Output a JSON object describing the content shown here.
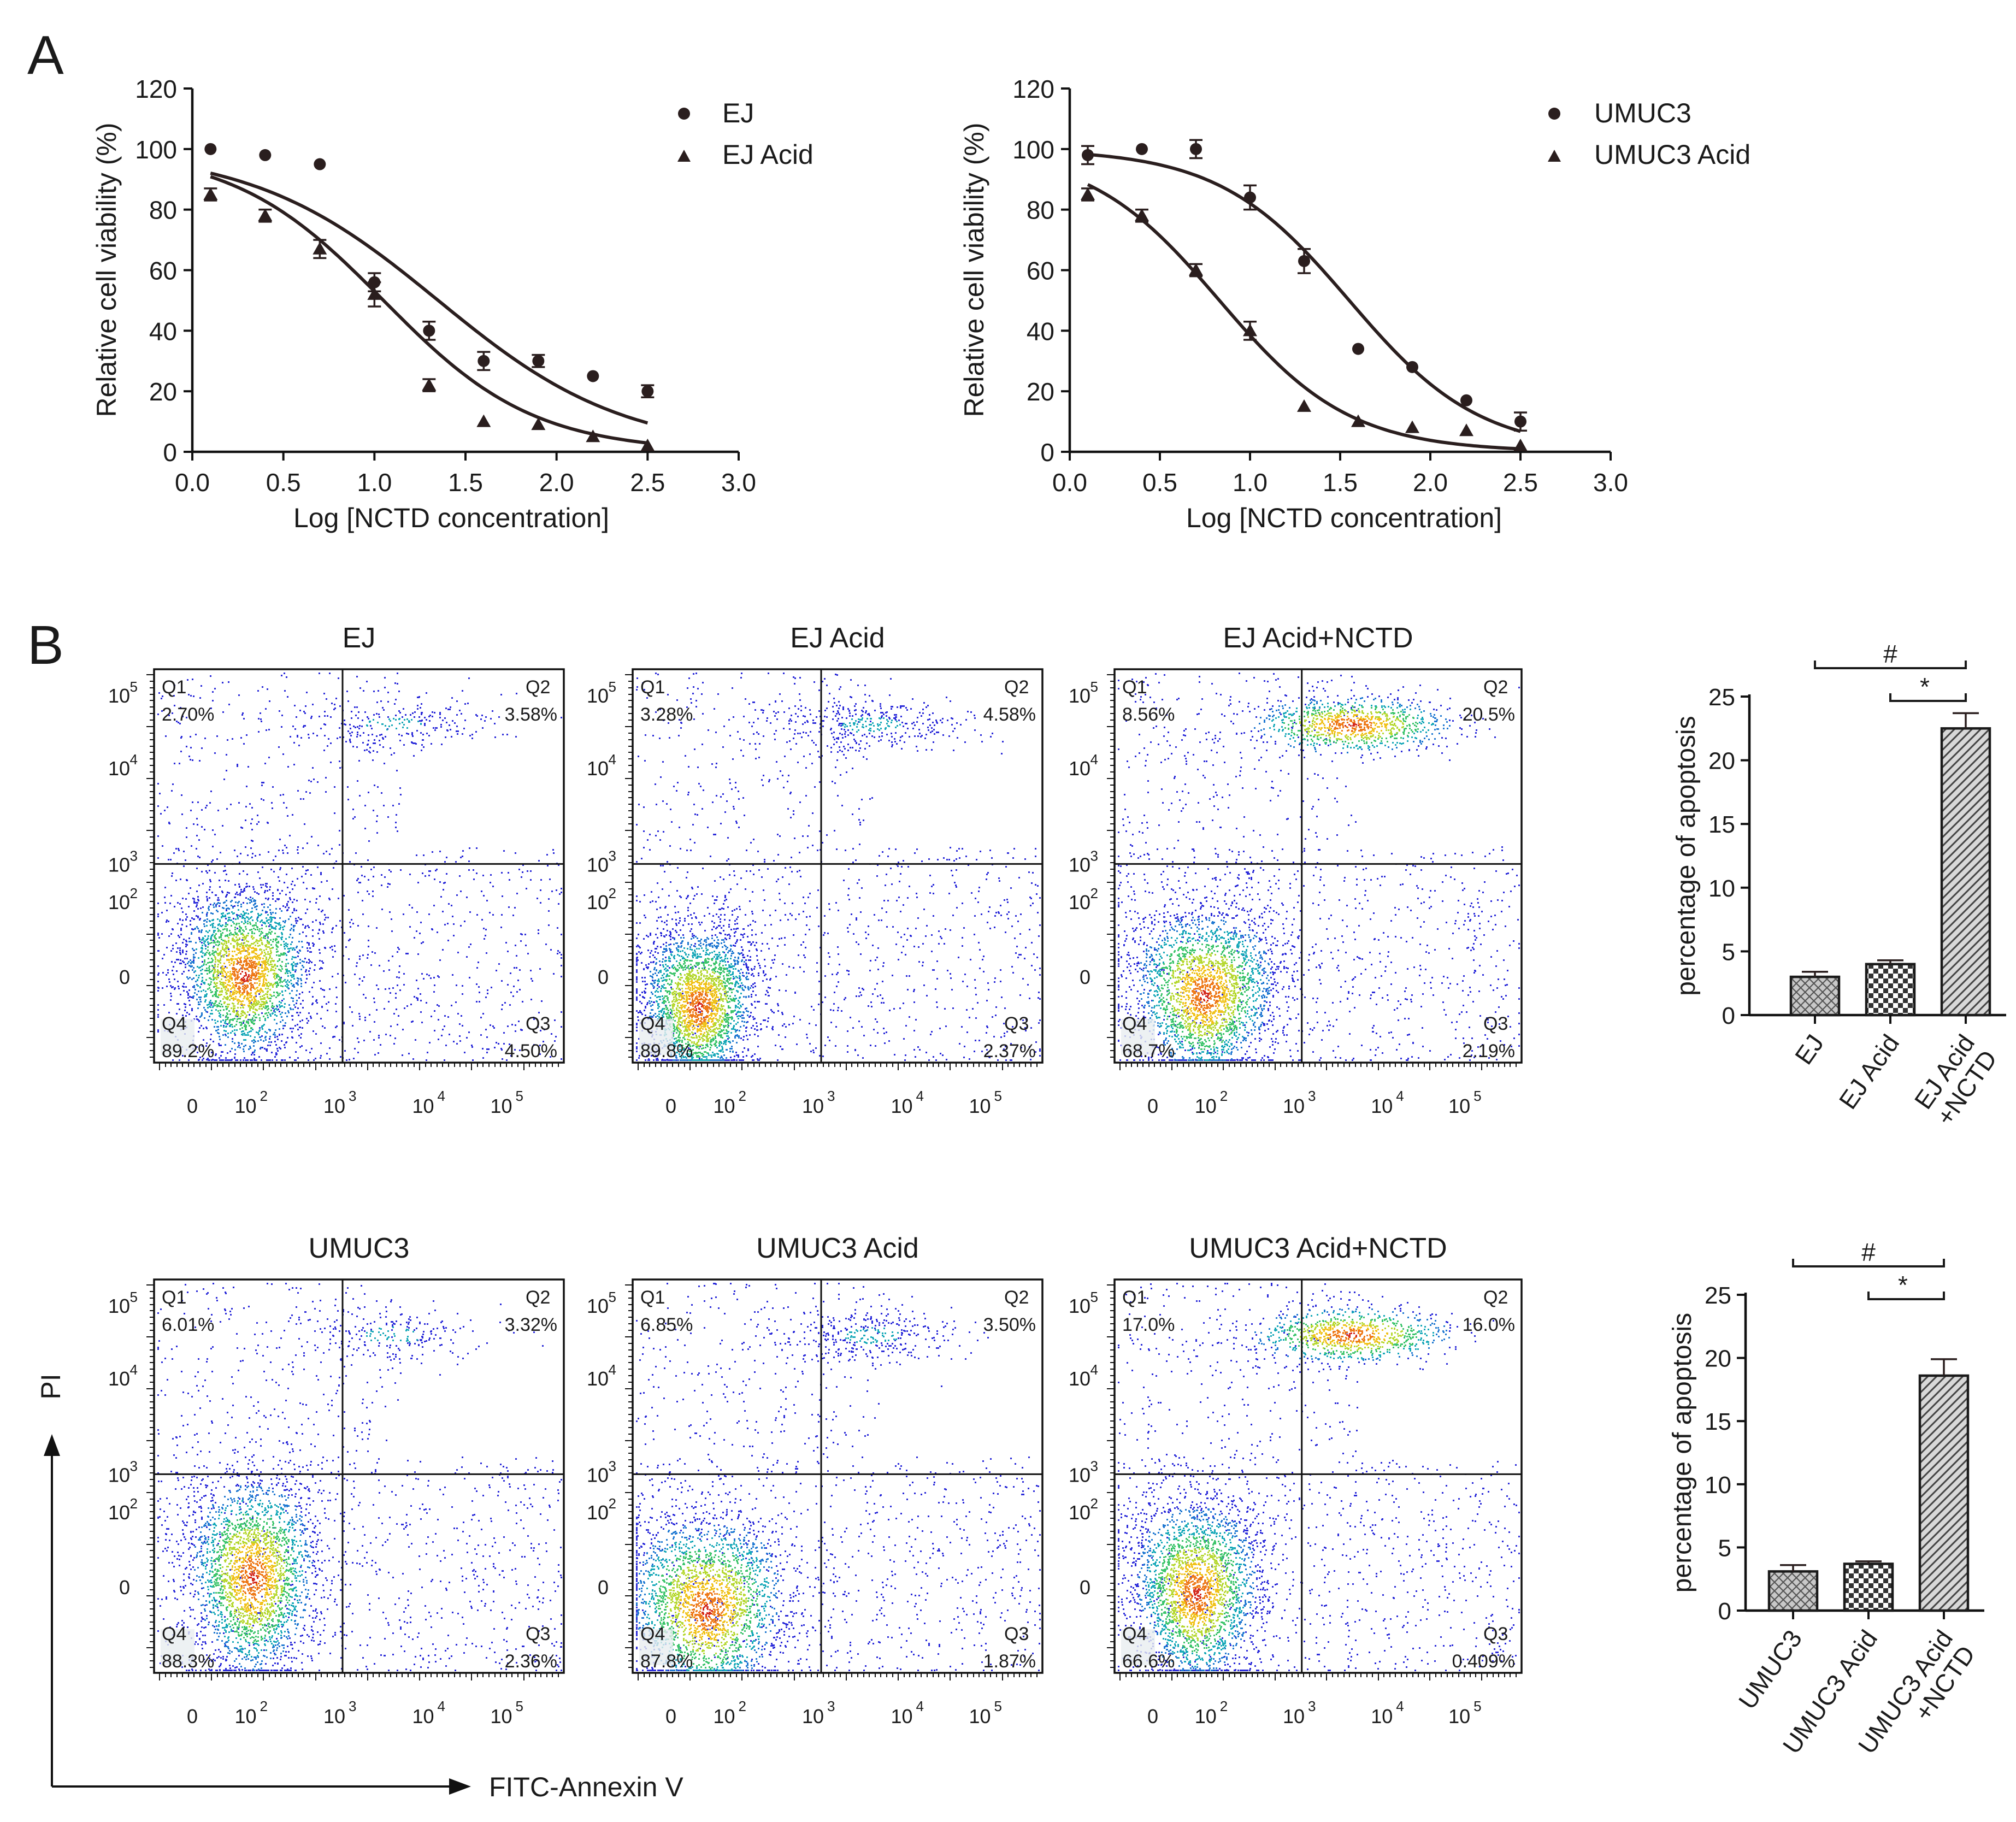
{
  "panel_labels": {
    "a": "A",
    "b": "B"
  },
  "chart_data": [
    {
      "id": "viability_ej",
      "type": "scatter",
      "xlabel": "Log [NCTD concentration]",
      "ylabel": "Relative cell viability (%)",
      "xlim": [
        0,
        3
      ],
      "ylim": [
        0,
        120
      ],
      "xticks": [
        "0.0",
        "0.5",
        "1.0",
        "1.5",
        "2.0",
        "2.5",
        "3.0"
      ],
      "yticks": [
        "0",
        "20",
        "40",
        "60",
        "80",
        "100",
        "120"
      ],
      "legend_position": "top-right",
      "series": [
        {
          "name": "EJ",
          "marker": "circle",
          "x": [
            0.1,
            0.4,
            0.7,
            1.0,
            1.3,
            1.6,
            1.9,
            2.2,
            2.5
          ],
          "y": [
            100,
            98,
            95,
            56,
            40,
            30,
            30,
            25,
            20
          ],
          "err": [
            0,
            0,
            0,
            3,
            3,
            3,
            2,
            0,
            2
          ],
          "fit": {
            "top": 100,
            "bottom": 0,
            "log_ic50": 1.35,
            "hill": 0.85
          }
        },
        {
          "name": "EJ Acid",
          "marker": "triangle",
          "x": [
            0.1,
            0.4,
            0.7,
            1.0,
            1.3,
            1.6,
            1.9,
            2.2,
            2.5
          ],
          "y": [
            85,
            78,
            67,
            52,
            22,
            10,
            9,
            5,
            2
          ],
          "err": [
            2,
            2,
            3,
            4,
            2,
            0,
            0,
            0,
            0
          ],
          "fit": {
            "top": 100,
            "bottom": 0,
            "log_ic50": 1.05,
            "hill": 1.05
          }
        }
      ]
    },
    {
      "id": "viability_umuc3",
      "type": "scatter",
      "xlabel": "Log [NCTD concentration]",
      "ylabel": "Relative cell viability (%)",
      "xlim": [
        0,
        3
      ],
      "ylim": [
        0,
        120
      ],
      "xticks": [
        "0.0",
        "0.5",
        "1.0",
        "1.5",
        "2.0",
        "2.5",
        "3.0"
      ],
      "yticks": [
        "0",
        "20",
        "40",
        "60",
        "80",
        "100",
        "120"
      ],
      "legend_position": "top-right",
      "series": [
        {
          "name": "UMUC3",
          "marker": "circle",
          "x": [
            0.1,
            0.4,
            0.7,
            1.0,
            1.3,
            1.6,
            1.9,
            2.2,
            2.5
          ],
          "y": [
            98,
            100,
            100,
            84,
            63,
            34,
            28,
            17,
            10
          ],
          "err": [
            3,
            0,
            3,
            4,
            4,
            0,
            0,
            0,
            3
          ],
          "fit": {
            "top": 100,
            "bottom": 0,
            "log_ic50": 1.55,
            "hill": 1.2
          }
        },
        {
          "name": "UMUC3 Acid",
          "marker": "triangle",
          "x": [
            0.1,
            0.4,
            0.7,
            1.0,
            1.3,
            1.6,
            1.9,
            2.2,
            2.5
          ],
          "y": [
            85,
            78,
            60,
            40,
            15,
            10,
            8,
            7,
            2
          ],
          "err": [
            2,
            2,
            2,
            3,
            0,
            0,
            0,
            0,
            0
          ],
          "fit": {
            "top": 100,
            "bottom": 0,
            "log_ic50": 0.83,
            "hill": 1.2
          }
        }
      ]
    },
    {
      "id": "apoptosis_ej",
      "type": "bar",
      "ylabel": "percentage of apoptosis",
      "categories": [
        [
          "EJ"
        ],
        [
          "EJ Acid"
        ],
        [
          "EJ Acid",
          "+NCTD"
        ]
      ],
      "values": [
        3.0,
        4.0,
        22.5
      ],
      "errors": [
        0.4,
        0.3,
        1.2
      ],
      "patterns": [
        "crosshatch",
        "checker",
        "diagonal"
      ],
      "ylim": [
        0,
        25
      ],
      "yticks": [
        "0",
        "5",
        "10",
        "15",
        "20",
        "25"
      ],
      "significance": [
        {
          "label": "#",
          "from": 0,
          "to": 2
        },
        {
          "label": "*",
          "from": 1,
          "to": 2
        }
      ]
    },
    {
      "id": "apoptosis_umuc3",
      "type": "bar",
      "ylabel": "percentage of apoptosis",
      "categories": [
        [
          "UMUC3"
        ],
        [
          "UMUC3 Acid"
        ],
        [
          "UMUC3 Acid",
          "+NCTD"
        ]
      ],
      "values": [
        3.1,
        3.7,
        18.6
      ],
      "errors": [
        0.5,
        0.2,
        1.3
      ],
      "patterns": [
        "crosshatch",
        "checker",
        "diagonal"
      ],
      "ylim": [
        0,
        25
      ],
      "yticks": [
        "0",
        "5",
        "10",
        "15",
        "20",
        "25"
      ],
      "significance": [
        {
          "label": "#",
          "from": 0,
          "to": 2
        },
        {
          "label": "*",
          "from": 1,
          "to": 2
        }
      ]
    }
  ],
  "flow_cytometry": {
    "y_axis_label": "PI",
    "x_axis_label": "FITC-Annexin V",
    "axis_ticks": [
      "0",
      "10",
      "10",
      "10",
      "10"
    ],
    "tick_exponents": [
      "",
      "2",
      "3",
      "4",
      "5"
    ],
    "quadrant_names": [
      "Q1",
      "Q2",
      "Q3",
      "Q4"
    ],
    "plots": [
      {
        "title": "EJ",
        "q1": "2.70%",
        "q2": "3.58%",
        "q3": "4.50%",
        "q4": "89.2%"
      },
      {
        "title": "EJ Acid",
        "q1": "3.28%",
        "q2": "4.58%",
        "q3": "2.37%",
        "q4": "89.8%"
      },
      {
        "title": "EJ Acid+NCTD",
        "q1": "8.56%",
        "q2": "20.5%",
        "q3": "2.19%",
        "q4": "68.7%"
      },
      {
        "title": "UMUC3",
        "q1": "6.01%",
        "q2": "3.32%",
        "q3": "2.36%",
        "q4": "88.3%"
      },
      {
        "title": "UMUC3 Acid",
        "q1": "6.85%",
        "q2": "3.50%",
        "q3": "1.87%",
        "q4": "87.8%"
      },
      {
        "title": "UMUC3 Acid+NCTD",
        "q1": "17.0%",
        "q2": "16.0%",
        "q3": "0.409%",
        "q4": "66.6%"
      }
    ]
  }
}
